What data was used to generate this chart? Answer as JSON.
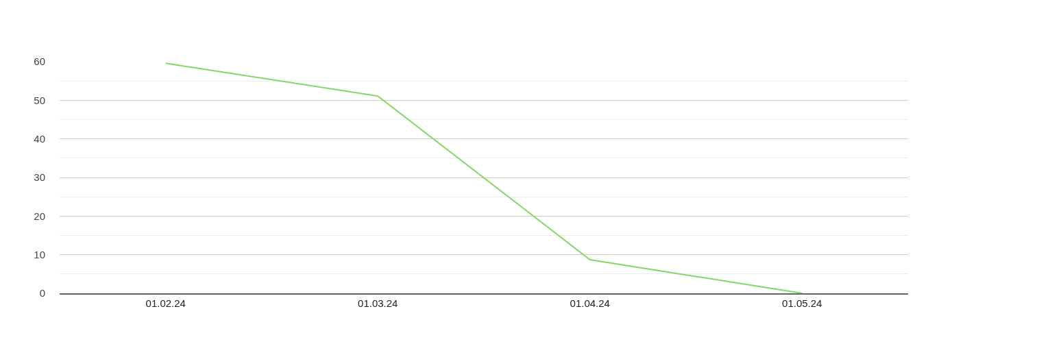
{
  "chart_data": {
    "type": "line",
    "categories": [
      "01.02.24",
      "01.03.24",
      "01.04.24",
      "01.05.24"
    ],
    "series": [
      {
        "color": "#83d865",
        "values": [
          59.6,
          51.1,
          8.7,
          0
        ]
      }
    ],
    "ylim": [
      0,
      60
    ],
    "yticks": [
      0,
      10,
      20,
      30,
      40,
      50,
      60
    ],
    "grid": "y",
    "marker": "none",
    "line_style": "solid"
  }
}
